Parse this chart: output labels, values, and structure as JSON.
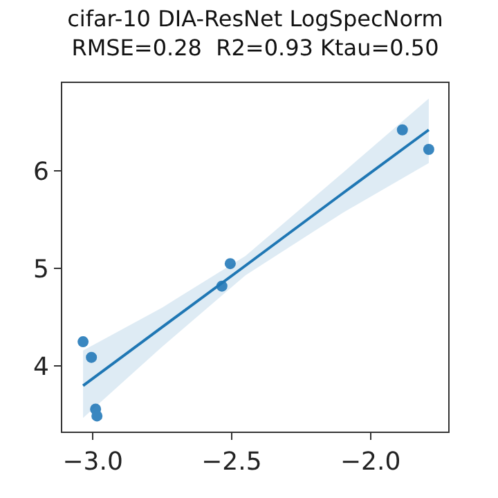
{
  "chart_data": {
    "type": "scatter",
    "title": "cifar-10 DIA-ResNet LogSpecNorm",
    "subtitle": "RMSE=0.28  R2=0.93 Ktau=0.50",
    "series": [
      {
        "color": "#3a87c0",
        "marker": "circle",
        "x": [
          -3.035,
          -3.005,
          -2.99,
          -2.985,
          -2.535,
          -2.505,
          -1.885,
          -1.79
        ],
        "values": [
          4.25,
          4.09,
          3.56,
          3.49,
          4.82,
          5.05,
          6.42,
          6.22
        ]
      },
      {
        "type": "line",
        "color": "#1f77b4",
        "marker": "none",
        "x": [
          -3.035,
          -2.75,
          -2.45,
          -2.1,
          -1.79
        ],
        "values": [
          3.8,
          4.4,
          5.03,
          5.77,
          6.42
        ],
        "lower": [
          3.47,
          4.2,
          4.93,
          5.57,
          6.08
        ],
        "upper": [
          4.16,
          4.6,
          5.13,
          5.98,
          6.74
        ]
      }
    ],
    "xlim": [
      -3.11,
      -1.72
    ],
    "xticks": [
      {
        "value": -3.0,
        "label": "−3.0"
      },
      {
        "value": -2.5,
        "label": "−2.5"
      },
      {
        "value": -2.0,
        "label": "−2.0"
      }
    ],
    "ylim": [
      3.33,
      6.9
    ],
    "yticks": [
      4,
      5,
      6
    ]
  }
}
